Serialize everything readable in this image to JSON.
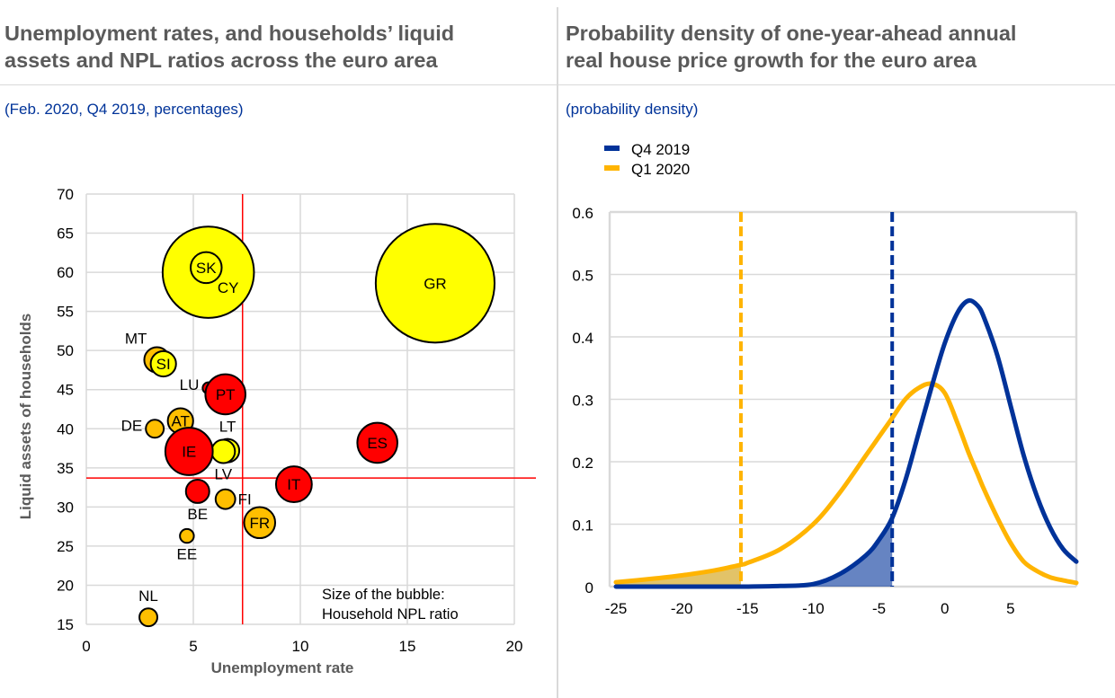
{
  "left": {
    "title_line1": "Unemployment rates, and households’ liquid",
    "title_line2": "assets and NPL ratios across the euro area",
    "subtitle": "(Feb. 2020, Q4 2019, percentages)",
    "note_line1": "Size of the bubble:",
    "note_line2": "Household NPL ratio"
  },
  "right": {
    "title_line1": "Probability density of one-year-ahead annual",
    "title_line2": "real house price growth for the euro area",
    "subtitle": "(probability density)"
  },
  "colors": {
    "red": "#ff0000",
    "orange": "#ffbf00",
    "yellow": "#ffff00",
    "blue": "#003299",
    "gold": "#ffb400",
    "grid": "#d9d9d9",
    "title": "#5a5a5a",
    "subtitle": "#003399"
  },
  "chart_data": [
    {
      "type": "scatter",
      "subtype": "bubble",
      "title": "Unemployment rates, and households’ liquid assets and NPL ratios across the euro area",
      "subtitle": "(Feb. 2020, Q4 2019, percentages)",
      "xlabel": "Unemployment rate",
      "ylabel": "Liquid assets of households",
      "xlim": [
        0,
        20
      ],
      "ylim": [
        15,
        70
      ],
      "xticks": [
        "0",
        "5",
        "10",
        "15",
        "20"
      ],
      "yticks": [
        "15",
        "20",
        "25",
        "30",
        "35",
        "40",
        "45",
        "50",
        "55",
        "60",
        "65",
        "70"
      ],
      "grid": true,
      "reference_lines": {
        "x": 7.3,
        "y": 33.7
      },
      "annotation": "Size of the bubble: Household NPL ratio",
      "points": [
        {
          "label": "CY",
          "x": 5.7,
          "y": 60.0,
          "npl_size": 2.6,
          "color": "yellow",
          "label_pos": "inside-bottom-right"
        },
        {
          "label": "GR",
          "x": 16.3,
          "y": 58.6,
          "npl_size": 4.4,
          "color": "yellow",
          "label_pos": "center"
        },
        {
          "label": "SK",
          "x": 5.6,
          "y": 60.6,
          "npl_size": 0.3,
          "color": "yellow",
          "label_pos": "center"
        },
        {
          "label": "MT",
          "x": 3.3,
          "y": 48.8,
          "npl_size": 0.2,
          "color": "orange",
          "label_pos": "top-left"
        },
        {
          "label": "SI",
          "x": 3.6,
          "y": 48.3,
          "npl_size": 0.2,
          "color": "yellow",
          "label_pos": "center"
        },
        {
          "label": "LU",
          "x": 5.7,
          "y": 45.2,
          "npl_size": 0.04,
          "color": "red",
          "label_pos": "left"
        },
        {
          "label": "PT",
          "x": 6.5,
          "y": 44.4,
          "npl_size": 0.5,
          "color": "red",
          "label_pos": "center"
        },
        {
          "label": "AT",
          "x": 4.4,
          "y": 41.0,
          "npl_size": 0.2,
          "color": "orange",
          "label_pos": "center"
        },
        {
          "label": "DE",
          "x": 3.2,
          "y": 40.0,
          "npl_size": 0.1,
          "color": "orange",
          "label_pos": "left"
        },
        {
          "label": "LT",
          "x": 6.6,
          "y": 37.2,
          "npl_size": 0.17,
          "color": "yellow",
          "label_pos": "top"
        },
        {
          "label": "LV",
          "x": 6.4,
          "y": 37.1,
          "npl_size": 0.17,
          "color": "yellow",
          "label_pos": "bottom"
        },
        {
          "label": "IE",
          "x": 4.8,
          "y": 37.1,
          "npl_size": 0.7,
          "color": "red",
          "label_pos": "center"
        },
        {
          "label": "ES",
          "x": 13.6,
          "y": 38.2,
          "npl_size": 0.5,
          "color": "red",
          "label_pos": "center"
        },
        {
          "label": "IT",
          "x": 9.7,
          "y": 32.9,
          "npl_size": 0.4,
          "color": "red",
          "label_pos": "center"
        },
        {
          "label": "BE",
          "x": 5.2,
          "y": 32.0,
          "npl_size": 0.17,
          "color": "red",
          "label_pos": "bottom"
        },
        {
          "label": "FI",
          "x": 6.5,
          "y": 31.0,
          "npl_size": 0.12,
          "color": "orange",
          "label_pos": "right"
        },
        {
          "label": "FR",
          "x": 8.1,
          "y": 28.0,
          "npl_size": 0.3,
          "color": "orange",
          "label_pos": "center"
        },
        {
          "label": "EE",
          "x": 4.7,
          "y": 26.3,
          "npl_size": 0.06,
          "color": "orange",
          "label_pos": "bottom"
        },
        {
          "label": "NL",
          "x": 2.9,
          "y": 15.9,
          "npl_size": 0.1,
          "color": "orange",
          "label_pos": "top"
        }
      ]
    },
    {
      "type": "line",
      "title": "Probability density of one-year-ahead annual real house price growth for the euro area",
      "subtitle": "(probability density)",
      "xlim": [
        -25,
        10
      ],
      "ylim": [
        0,
        0.6
      ],
      "xticks": [
        "-25",
        "-20",
        "-15",
        "-10",
        "-5",
        "0",
        "5"
      ],
      "yticks": [
        "0",
        "0.1",
        "0.2",
        "0.3",
        "0.4",
        "0.5",
        "0.6"
      ],
      "grid": true,
      "legend": {
        "placement": "top-left",
        "entries": [
          "Q4 2019",
          "Q1 2020"
        ]
      },
      "x": [
        -25,
        -22.5,
        -20,
        -17.5,
        -15.5,
        -15,
        -12.5,
        -10,
        -8,
        -6,
        -5,
        -4,
        -3,
        -2,
        -1,
        0,
        1,
        1.8,
        2.5,
        3,
        4,
        5,
        6,
        7,
        8,
        9,
        10
      ],
      "series": [
        {
          "name": "Q4 2019",
          "color": "blue",
          "values": [
            0.0,
            0.0,
            0.0,
            0.0,
            0.0,
            0.0,
            0.001,
            0.004,
            0.02,
            0.05,
            0.075,
            0.11,
            0.17,
            0.245,
            0.32,
            0.39,
            0.44,
            0.458,
            0.45,
            0.43,
            0.37,
            0.29,
            0.21,
            0.145,
            0.095,
            0.06,
            0.04
          ],
          "threshold_x": -4.0,
          "shaded_tail": true
        },
        {
          "name": "Q1 2020",
          "color": "gold",
          "values": [
            0.007,
            0.012,
            0.018,
            0.026,
            0.035,
            0.038,
            0.06,
            0.1,
            0.15,
            0.21,
            0.24,
            0.27,
            0.3,
            0.318,
            0.325,
            0.31,
            0.26,
            0.215,
            0.18,
            0.155,
            0.11,
            0.07,
            0.04,
            0.025,
            0.015,
            0.01,
            0.006
          ],
          "threshold_x": -15.5,
          "shaded_tail": true
        }
      ]
    }
  ]
}
